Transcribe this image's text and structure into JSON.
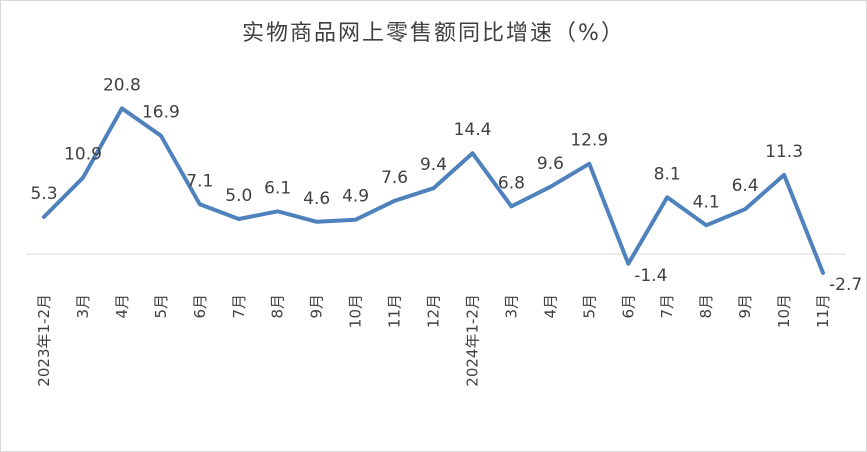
{
  "chart_data": {
    "type": "line",
    "title": "实物商品网上零售额同比增速（%）",
    "xlabel": "",
    "ylabel": "",
    "ylim": [
      -3,
      22
    ],
    "grid": false,
    "legend": "none",
    "line_color": "#4f81bd",
    "categories": [
      "2023年1-2月",
      "3月",
      "4月",
      "5月",
      "6月",
      "7月",
      "8月",
      "9月",
      "10月",
      "11月",
      "12月",
      "2024年1-2月",
      "3月",
      "4月",
      "5月",
      "6月",
      "7月",
      "8月",
      "9月",
      "10月",
      "11月"
    ],
    "series": [
      {
        "values": [
          5.3,
          10.9,
          20.8,
          16.9,
          7.1,
          5.0,
          6.1,
          4.6,
          4.9,
          7.6,
          9.4,
          14.4,
          6.8,
          9.6,
          12.9,
          -1.4,
          8.1,
          4.1,
          6.4,
          11.3,
          -2.7
        ]
      }
    ],
    "data_labels": [
      "5.3",
      "10.9",
      "20.8",
      "16.9",
      "7.1",
      "5.0",
      "6.1",
      "4.6",
      "4.9",
      "7.6",
      "9.4",
      "14.4",
      "6.8",
      "9.6",
      "12.9",
      "-1.4",
      "8.1",
      "4.1",
      "6.4",
      "11.3",
      "-2.7"
    ]
  }
}
